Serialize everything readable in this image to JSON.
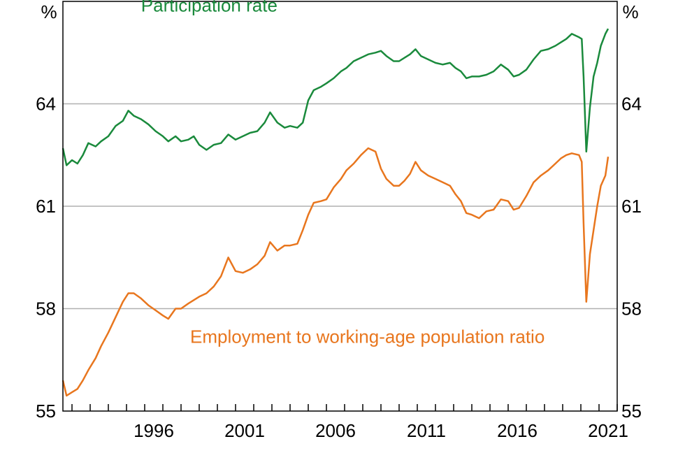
{
  "chart_data": {
    "type": "line",
    "x_axis": {
      "unit": "year",
      "range": [
        1991.5,
        2022.0
      ],
      "tick_labels": [
        "1996",
        "2001",
        "2006",
        "2011",
        "2016",
        "2021"
      ],
      "tick_values": [
        1996,
        2001,
        2006,
        2011,
        2016,
        2021
      ],
      "minor_tick_step": 1
    },
    "y_axis": {
      "left_unit": "%",
      "right_unit": "%",
      "range": [
        55,
        67
      ],
      "tick_labels": [
        "55",
        "58",
        "61",
        "64"
      ],
      "tick_values": [
        55,
        58,
        61,
        64
      ],
      "gridlines": [
        58,
        61,
        64
      ]
    },
    "grid": true,
    "series": [
      {
        "name": "Participation rate",
        "color": "#1a8a3c",
        "label_position": [
          1995.8,
          66.7
        ],
        "points": [
          [
            1991.5,
            62.7
          ],
          [
            1991.7,
            62.2
          ],
          [
            1992.0,
            62.35
          ],
          [
            1992.3,
            62.25
          ],
          [
            1992.6,
            62.5
          ],
          [
            1992.9,
            62.85
          ],
          [
            1993.3,
            62.75
          ],
          [
            1993.6,
            62.9
          ],
          [
            1994.0,
            63.05
          ],
          [
            1994.4,
            63.35
          ],
          [
            1994.8,
            63.5
          ],
          [
            1995.1,
            63.8
          ],
          [
            1995.4,
            63.65
          ],
          [
            1995.8,
            63.55
          ],
          [
            1996.2,
            63.4
          ],
          [
            1996.6,
            63.2
          ],
          [
            1997.0,
            63.05
          ],
          [
            1997.3,
            62.9
          ],
          [
            1997.7,
            63.05
          ],
          [
            1998.0,
            62.9
          ],
          [
            1998.4,
            62.95
          ],
          [
            1998.7,
            63.05
          ],
          [
            1999.0,
            62.8
          ],
          [
            1999.4,
            62.65
          ],
          [
            1999.8,
            62.8
          ],
          [
            2000.2,
            62.85
          ],
          [
            2000.6,
            63.1
          ],
          [
            2001.0,
            62.95
          ],
          [
            2001.4,
            63.05
          ],
          [
            2001.8,
            63.15
          ],
          [
            2002.2,
            63.2
          ],
          [
            2002.6,
            63.45
          ],
          [
            2002.9,
            63.75
          ],
          [
            2003.3,
            63.45
          ],
          [
            2003.7,
            63.3
          ],
          [
            2004.0,
            63.35
          ],
          [
            2004.4,
            63.3
          ],
          [
            2004.7,
            63.45
          ],
          [
            2005.0,
            64.1
          ],
          [
            2005.3,
            64.4
          ],
          [
            2005.7,
            64.5
          ],
          [
            2006.0,
            64.6
          ],
          [
            2006.4,
            64.75
          ],
          [
            2006.8,
            64.95
          ],
          [
            2007.1,
            65.05
          ],
          [
            2007.5,
            65.25
          ],
          [
            2007.9,
            65.35
          ],
          [
            2008.3,
            65.45
          ],
          [
            2008.7,
            65.5
          ],
          [
            2009.0,
            65.55
          ],
          [
            2009.3,
            65.4
          ],
          [
            2009.7,
            65.25
          ],
          [
            2010.0,
            65.25
          ],
          [
            2010.3,
            65.35
          ],
          [
            2010.6,
            65.45
          ],
          [
            2010.9,
            65.6
          ],
          [
            2011.2,
            65.4
          ],
          [
            2011.6,
            65.3
          ],
          [
            2012.0,
            65.2
          ],
          [
            2012.4,
            65.15
          ],
          [
            2012.8,
            65.2
          ],
          [
            2013.1,
            65.05
          ],
          [
            2013.4,
            64.95
          ],
          [
            2013.7,
            64.75
          ],
          [
            2014.0,
            64.8
          ],
          [
            2014.4,
            64.8
          ],
          [
            2014.8,
            64.85
          ],
          [
            2015.2,
            64.95
          ],
          [
            2015.6,
            65.15
          ],
          [
            2016.0,
            65.0
          ],
          [
            2016.3,
            64.8
          ],
          [
            2016.6,
            64.85
          ],
          [
            2017.0,
            65.0
          ],
          [
            2017.4,
            65.3
          ],
          [
            2017.8,
            65.55
          ],
          [
            2018.2,
            65.6
          ],
          [
            2018.6,
            65.7
          ],
          [
            2018.9,
            65.8
          ],
          [
            2019.2,
            65.9
          ],
          [
            2019.5,
            66.05
          ],
          [
            2019.9,
            65.95
          ],
          [
            2020.05,
            65.9
          ],
          [
            2020.15,
            64.8
          ],
          [
            2020.3,
            62.6
          ],
          [
            2020.5,
            63.9
          ],
          [
            2020.7,
            64.8
          ],
          [
            2020.9,
            65.2
          ],
          [
            2021.1,
            65.7
          ],
          [
            2021.35,
            66.05
          ],
          [
            2021.5,
            66.2
          ]
        ]
      },
      {
        "name": "Employment to working-age population ratio",
        "color": "#e8761e",
        "label_position": [
          1998.5,
          57.0
        ],
        "points": [
          [
            1991.5,
            55.9
          ],
          [
            1991.7,
            55.45
          ],
          [
            1992.0,
            55.55
          ],
          [
            1992.3,
            55.65
          ],
          [
            1992.6,
            55.9
          ],
          [
            1992.9,
            56.2
          ],
          [
            1993.3,
            56.55
          ],
          [
            1993.6,
            56.9
          ],
          [
            1994.0,
            57.3
          ],
          [
            1994.4,
            57.75
          ],
          [
            1994.8,
            58.2
          ],
          [
            1995.1,
            58.45
          ],
          [
            1995.4,
            58.45
          ],
          [
            1995.8,
            58.3
          ],
          [
            1996.2,
            58.1
          ],
          [
            1996.6,
            57.95
          ],
          [
            1997.0,
            57.8
          ],
          [
            1997.3,
            57.7
          ],
          [
            1997.7,
            58.0
          ],
          [
            1998.0,
            58.0
          ],
          [
            1998.4,
            58.15
          ],
          [
            1998.7,
            58.25
          ],
          [
            1999.0,
            58.35
          ],
          [
            1999.4,
            58.45
          ],
          [
            1999.8,
            58.65
          ],
          [
            2000.2,
            58.95
          ],
          [
            2000.6,
            59.5
          ],
          [
            2001.0,
            59.1
          ],
          [
            2001.4,
            59.05
          ],
          [
            2001.8,
            59.15
          ],
          [
            2002.2,
            59.3
          ],
          [
            2002.6,
            59.55
          ],
          [
            2002.9,
            59.95
          ],
          [
            2003.3,
            59.7
          ],
          [
            2003.7,
            59.85
          ],
          [
            2004.0,
            59.85
          ],
          [
            2004.4,
            59.9
          ],
          [
            2004.7,
            60.3
          ],
          [
            2005.0,
            60.75
          ],
          [
            2005.3,
            61.1
          ],
          [
            2005.7,
            61.15
          ],
          [
            2006.0,
            61.2
          ],
          [
            2006.4,
            61.55
          ],
          [
            2006.8,
            61.8
          ],
          [
            2007.1,
            62.05
          ],
          [
            2007.5,
            62.25
          ],
          [
            2007.9,
            62.5
          ],
          [
            2008.3,
            62.7
          ],
          [
            2008.7,
            62.6
          ],
          [
            2009.0,
            62.1
          ],
          [
            2009.3,
            61.8
          ],
          [
            2009.7,
            61.6
          ],
          [
            2010.0,
            61.6
          ],
          [
            2010.3,
            61.75
          ],
          [
            2010.6,
            61.95
          ],
          [
            2010.9,
            62.3
          ],
          [
            2011.2,
            62.05
          ],
          [
            2011.6,
            61.9
          ],
          [
            2012.0,
            61.8
          ],
          [
            2012.4,
            61.7
          ],
          [
            2012.8,
            61.6
          ],
          [
            2013.1,
            61.35
          ],
          [
            2013.4,
            61.15
          ],
          [
            2013.7,
            60.8
          ],
          [
            2014.0,
            60.75
          ],
          [
            2014.4,
            60.65
          ],
          [
            2014.8,
            60.85
          ],
          [
            2015.2,
            60.9
          ],
          [
            2015.6,
            61.2
          ],
          [
            2016.0,
            61.15
          ],
          [
            2016.3,
            60.9
          ],
          [
            2016.6,
            60.95
          ],
          [
            2017.0,
            61.3
          ],
          [
            2017.4,
            61.7
          ],
          [
            2017.8,
            61.9
          ],
          [
            2018.2,
            62.05
          ],
          [
            2018.6,
            62.25
          ],
          [
            2018.9,
            62.4
          ],
          [
            2019.2,
            62.5
          ],
          [
            2019.5,
            62.55
          ],
          [
            2019.9,
            62.5
          ],
          [
            2020.05,
            62.3
          ],
          [
            2020.15,
            60.5
          ],
          [
            2020.3,
            58.2
          ],
          [
            2020.5,
            59.6
          ],
          [
            2020.7,
            60.3
          ],
          [
            2020.9,
            61.0
          ],
          [
            2021.1,
            61.6
          ],
          [
            2021.35,
            61.9
          ],
          [
            2021.5,
            62.45
          ]
        ]
      }
    ]
  }
}
